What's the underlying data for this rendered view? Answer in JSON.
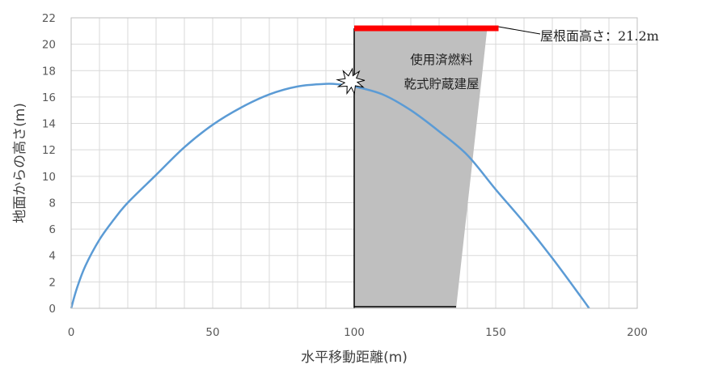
{
  "chart_data": {
    "type": "line",
    "title": "",
    "xlabel": "水平移動距離(m)",
    "ylabel": "地面からの高さ(m)",
    "xlim": [
      0,
      200
    ],
    "ylim": [
      0,
      22
    ],
    "x_ticks": [
      "0",
      "50",
      "100",
      "150",
      "200"
    ],
    "y_ticks": [
      "0",
      "2",
      "4",
      "6",
      "8",
      "10",
      "12",
      "14",
      "16",
      "18",
      "20",
      "22"
    ],
    "grid": true,
    "series": [
      {
        "color": "#5b9bd5",
        "x": [
          0,
          2,
          5,
          10,
          15,
          20,
          30,
          40,
          50,
          60,
          70,
          80,
          90,
          95,
          100,
          110,
          120,
          130,
          140,
          150,
          160,
          170,
          180,
          183
        ],
        "y": [
          0,
          1.5,
          3.2,
          5.2,
          6.7,
          8.0,
          10.1,
          12.2,
          13.9,
          15.2,
          16.2,
          16.8,
          17.0,
          16.95,
          16.8,
          16.2,
          15.0,
          13.4,
          11.6,
          9.0,
          6.5,
          3.8,
          0.9,
          0
        ]
      }
    ],
    "annotations": {
      "building": {
        "label_lines": [
          "使用済燃料",
          "乾式貯蔵建屋"
        ],
        "x_left": 100,
        "x_right_bottom": 136,
        "x_right_top": 147,
        "y_top": 21.2,
        "fill": "#bfbfbf"
      },
      "roof": {
        "label": "屋根面高さ：21.2m",
        "x_start": 100,
        "x_end": 151,
        "y": 21.2,
        "color": "#ff0000"
      },
      "impact": {
        "x": 100,
        "y": 17,
        "icon": "explosion-icon"
      }
    }
  }
}
